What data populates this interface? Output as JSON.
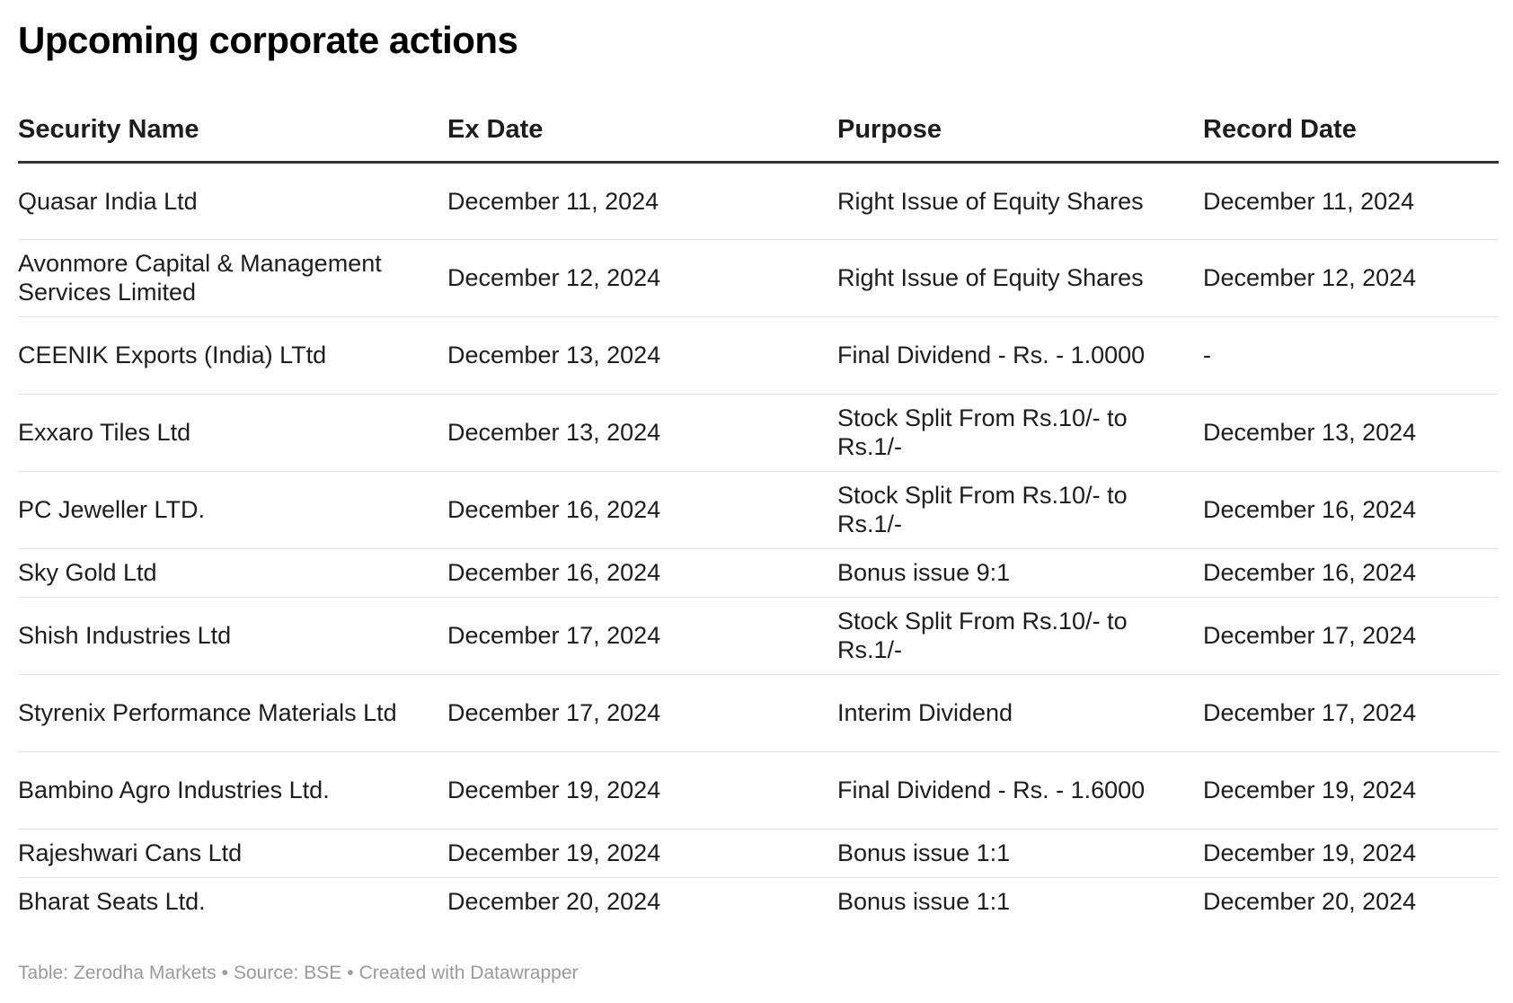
{
  "title": "Upcoming corporate actions",
  "chart_data": {
    "type": "table",
    "title": "Upcoming corporate actions",
    "columns": [
      "Security Name",
      "Ex Date",
      "Purpose",
      "Record Date"
    ],
    "rows": [
      {
        "security": "Quasar India Ltd",
        "ex_date": "December 11, 2024",
        "purpose": "Right Issue of Equity Shares",
        "record_date": "December 11, 2024"
      },
      {
        "security": "Avonmore Capital & Management Services Limited",
        "ex_date": "December 12, 2024",
        "purpose": "Right Issue of Equity Shares",
        "record_date": "December 12, 2024"
      },
      {
        "security": "CEENIK Exports (India) LTtd",
        "ex_date": "December 13, 2024",
        "purpose": "Final Dividend - Rs. - 1.0000",
        "record_date": "-"
      },
      {
        "security": "Exxaro Tiles Ltd",
        "ex_date": "December 13, 2024",
        "purpose": "Stock Split From Rs.10/- to Rs.1/-",
        "record_date": "December 13, 2024"
      },
      {
        "security": "PC Jeweller LTD.",
        "ex_date": "December 16, 2024",
        "purpose": "Stock Split From Rs.10/- to Rs.1/-",
        "record_date": "December 16, 2024"
      },
      {
        "security": "Sky Gold Ltd",
        "ex_date": "December 16, 2024",
        "purpose": "Bonus issue 9:1",
        "record_date": "December 16, 2024"
      },
      {
        "security": "Shish Industries Ltd",
        "ex_date": "December 17, 2024",
        "purpose": "Stock Split From Rs.10/- to Rs.1/-",
        "record_date": "December 17, 2024"
      },
      {
        "security": "Styrenix Performance Materials Ltd",
        "ex_date": "December 17, 2024",
        "purpose": "Interim Dividend",
        "record_date": "December 17, 2024"
      },
      {
        "security": "Bambino Agro Industries Ltd.",
        "ex_date": "December 19, 2024",
        "purpose": "Final Dividend - Rs. - 1.6000",
        "record_date": "December 19, 2024"
      },
      {
        "security": "Rajeshwari Cans Ltd",
        "ex_date": "December 19, 2024",
        "purpose": "Bonus issue 1:1",
        "record_date": "December 19, 2024"
      },
      {
        "security": "Bharat Seats Ltd.",
        "ex_date": "December 20, 2024",
        "purpose": "Bonus issue 1:1",
        "record_date": "December 20, 2024"
      }
    ]
  },
  "footer": {
    "table_label": "Table: Zerodha Markets",
    "source": "Source: BSE",
    "credit": "Created with Datawrapper",
    "separator": "•"
  }
}
